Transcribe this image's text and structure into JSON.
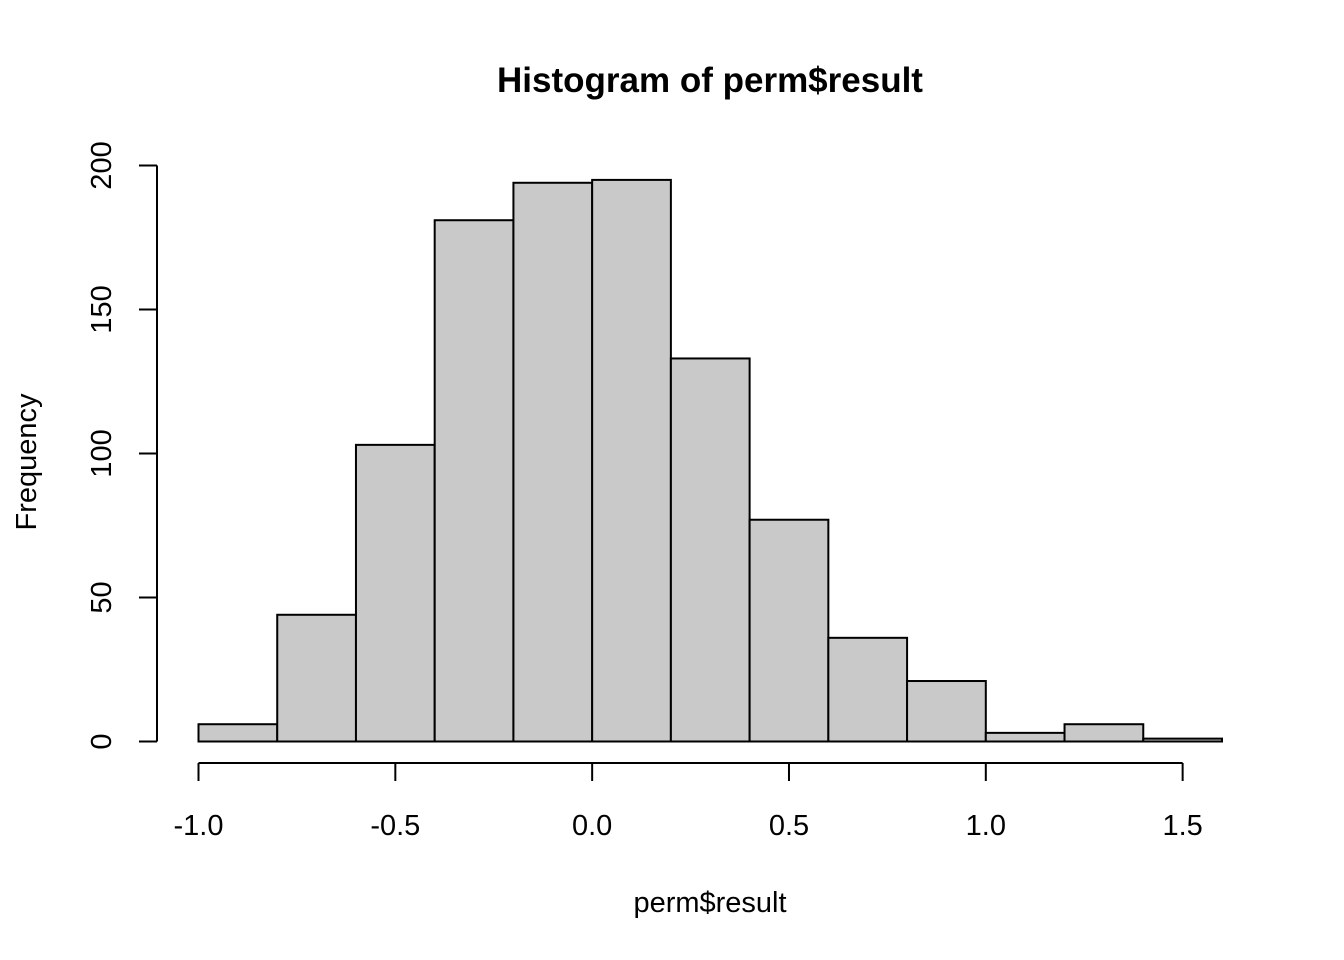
{
  "chart_data": {
    "type": "bar",
    "title": "Histogram of perm$result",
    "xlabel": "perm$result",
    "ylabel": "Frequency",
    "bin_edges": [
      -1.0,
      -0.8,
      -0.6,
      -0.4,
      -0.2,
      0.0,
      0.2,
      0.4,
      0.6,
      0.8,
      1.0,
      1.2,
      1.4,
      1.6
    ],
    "values": [
      6,
      44,
      103,
      181,
      194,
      195,
      133,
      77,
      36,
      21,
      3,
      6,
      1
    ],
    "x_ticks": [
      -1.0,
      -0.5,
      0.0,
      0.5,
      1.0,
      1.5
    ],
    "x_tick_labels": [
      "-1.0",
      "-0.5",
      "0.0",
      "0.5",
      "1.0",
      "1.5"
    ],
    "y_ticks": [
      0,
      50,
      100,
      150,
      200
    ],
    "y_tick_labels": [
      "0",
      "50",
      "100",
      "150",
      "200"
    ],
    "xlim": [
      -1.0,
      1.6
    ],
    "ylim": [
      0,
      200
    ],
    "grid": false,
    "legend": "none",
    "bar_fill": "#c9c9c9",
    "line_color": "#000000"
  }
}
